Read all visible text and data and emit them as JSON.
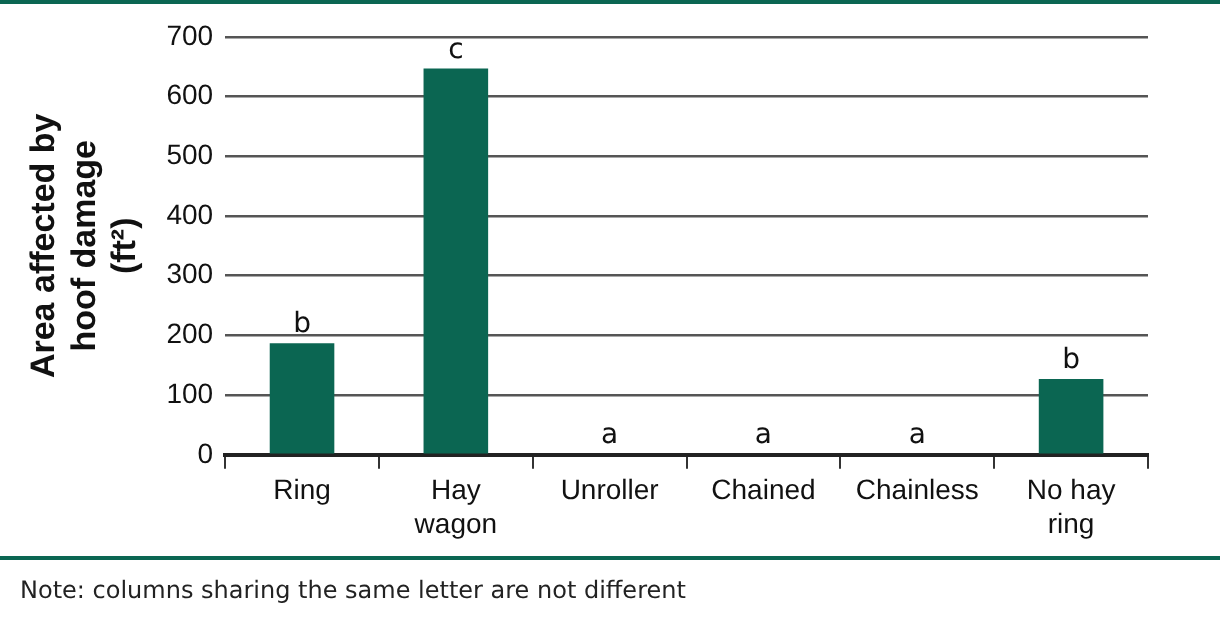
{
  "chart_data": {
    "type": "bar",
    "ylabel": "Area affected by hoof damage (ft²)",
    "categories": [
      "Ring",
      "Hay wagon",
      "Unroller",
      "Chained",
      "Chainless",
      "No hay ring"
    ],
    "values": [
      187,
      647,
      2,
      2,
      2,
      127
    ],
    "value_labels": [
      "b",
      "c",
      "a",
      "a",
      "a",
      "b"
    ],
    "color": "#0b6652",
    "ylim": [
      0,
      700
    ],
    "yticks": [
      0,
      100,
      200,
      300,
      400,
      500,
      600,
      700
    ],
    "grid": "y",
    "annotations": [
      "Note: columns sharing the same letter are not different"
    ]
  }
}
